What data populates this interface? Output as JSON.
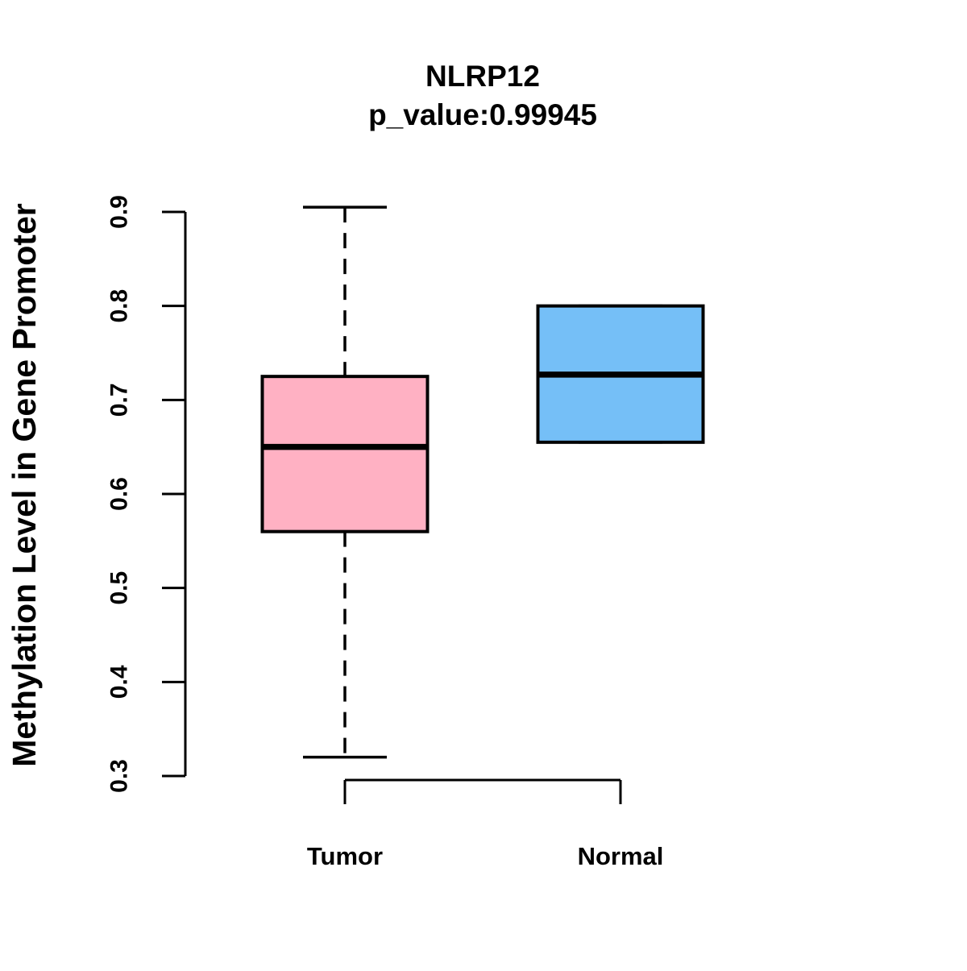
{
  "figure": {
    "background": "#FFFFFF",
    "line_color": "#000000"
  },
  "chart_data": {
    "type": "boxplot",
    "title": "NLRP12",
    "subtitle": "p_value:0.99945",
    "ylabel": "Methylation Level in Gene Promoter",
    "xlabel": "",
    "ylim": [
      0.3,
      0.9
    ],
    "ytick_labels": [
      "0.3",
      "0.4",
      "0.5",
      "0.6",
      "0.7",
      "0.8",
      "0.9"
    ],
    "ytick_values": [
      0.3,
      0.4,
      0.5,
      0.6,
      0.7,
      0.8,
      0.9
    ],
    "categories": [
      "Tumor",
      "Normal"
    ],
    "series": [
      {
        "name": "Tumor",
        "fill": "#FFB1C3",
        "whisker_low": 0.32,
        "q1": 0.56,
        "median": 0.65,
        "q3": 0.725,
        "whisker_high": 0.905,
        "whisker_style": "dashed"
      },
      {
        "name": "Normal",
        "fill": "#75BFF7",
        "whisker_low": 0.655,
        "q1": 0.655,
        "median": 0.727,
        "q3": 0.8,
        "whisker_high": 0.8,
        "whisker_style": "dashed"
      }
    ],
    "grid": false,
    "legend": null
  }
}
